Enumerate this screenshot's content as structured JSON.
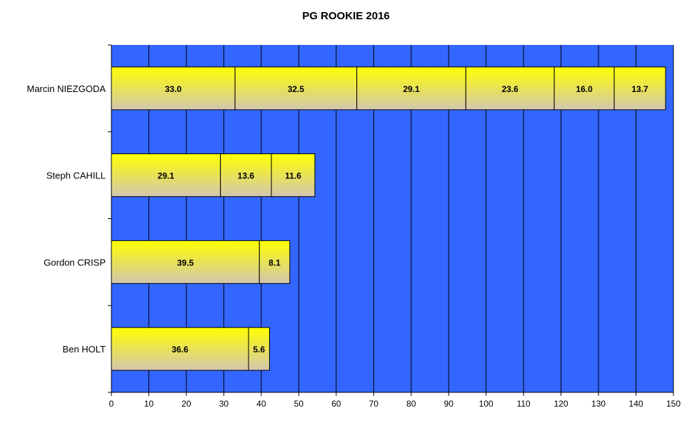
{
  "chart_data": {
    "type": "bar",
    "orientation": "horizontal",
    "stacked": true,
    "title": "PG ROOKIE 2016",
    "xlabel": "",
    "ylabel": "",
    "xlim": [
      0,
      150
    ],
    "x_ticks": [
      "0",
      "10",
      "20",
      "30",
      "40",
      "50",
      "60",
      "70",
      "80",
      "90",
      "100",
      "110",
      "120",
      "130",
      "140",
      "150"
    ],
    "categories": [
      "Marcin NIEZGODA",
      "Steph CAHILL",
      "Gordon CRISP",
      "Ben HOLT"
    ],
    "segments": [
      [
        "33.0",
        "32.5",
        "29.1",
        "23.6",
        "16.0",
        "13.7"
      ],
      [
        "29.1",
        "13.6",
        "11.6"
      ],
      [
        "39.5",
        "8.1"
      ],
      [
        "36.6",
        "5.6"
      ]
    ],
    "grid": "vertical",
    "legend": "none",
    "colors": {
      "plot_background": "#3366ff",
      "bar_top": "#ffff00",
      "bar_bottom": "#d2c6b0",
      "bar_border": "#000000",
      "grid": "#000000"
    }
  }
}
